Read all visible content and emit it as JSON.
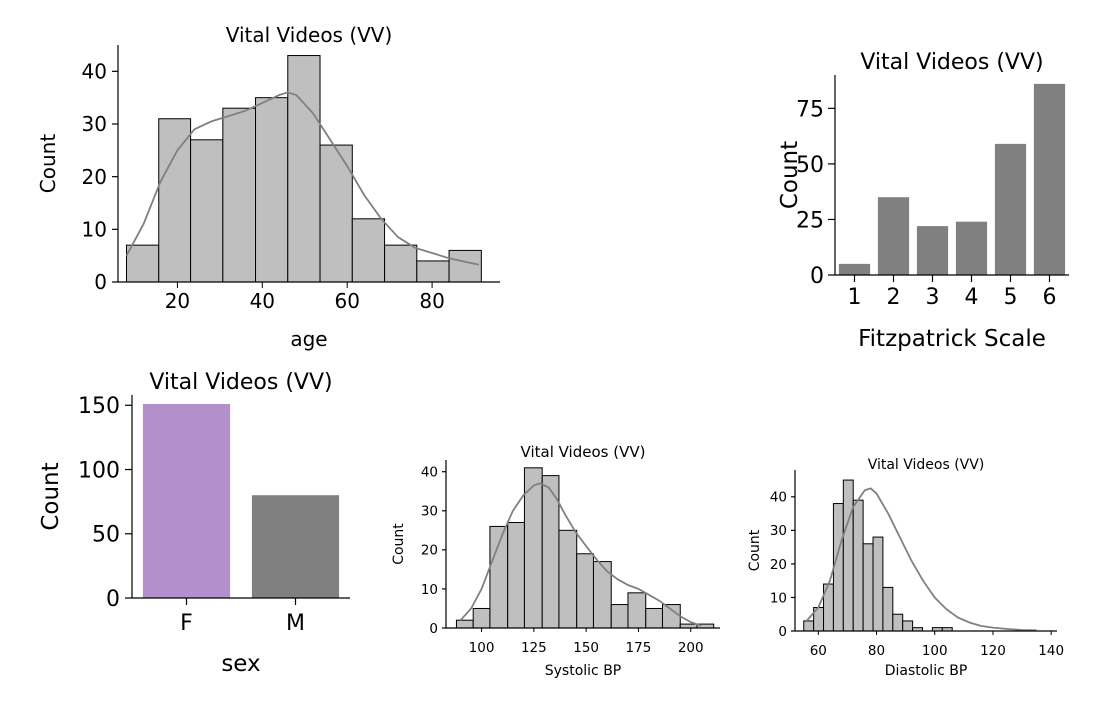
{
  "chart_data": [
    {
      "id": "age",
      "type": "histogram",
      "title": "Vital Videos (VV)",
      "xlabel": "age",
      "ylabel": "Count",
      "xlim": [
        6,
        96
      ],
      "ylim": [
        0,
        45
      ],
      "xticks": [
        20,
        40,
        60,
        80
      ],
      "yticks": [
        0,
        10,
        20,
        30,
        40
      ],
      "bins": [
        {
          "x0": 8,
          "x1": 15.6,
          "count": 7
        },
        {
          "x0": 15.6,
          "x1": 23.1,
          "count": 31
        },
        {
          "x0": 23.1,
          "x1": 30.7,
          "count": 27
        },
        {
          "x0": 30.7,
          "x1": 38.4,
          "count": 33
        },
        {
          "x0": 38.4,
          "x1": 46,
          "count": 35
        },
        {
          "x0": 46,
          "x1": 53.6,
          "count": 43
        },
        {
          "x0": 53.6,
          "x1": 61.2,
          "count": 26
        },
        {
          "x0": 61.2,
          "x1": 68.8,
          "count": 12
        },
        {
          "x0": 68.8,
          "x1": 76.4,
          "count": 7
        },
        {
          "x0": 76.4,
          "x1": 84,
          "count": 4
        },
        {
          "x0": 84,
          "x1": 91.6,
          "count": 6
        }
      ],
      "kde": {
        "x": [
          8,
          12,
          16,
          20,
          24,
          28,
          32,
          36,
          40,
          44,
          46,
          48,
          52,
          56,
          60,
          64,
          68,
          72,
          76,
          80,
          84,
          88,
          91
        ],
        "y": [
          5,
          11,
          19,
          25,
          29,
          30.5,
          31.5,
          32.5,
          34,
          35.5,
          36,
          35.5,
          32,
          27,
          22,
          16.5,
          12,
          8.5,
          6.5,
          5.5,
          4.5,
          3.8,
          3.3
        ]
      },
      "colors": {
        "bar": "#bfbfbf",
        "edge": "#000000",
        "kde": "#808080"
      }
    },
    {
      "id": "fitzpatrick",
      "type": "bar",
      "title": "Vital Videos (VV)",
      "xlabel": "Fitzpatrick Scale",
      "ylabel": "Count",
      "categories": [
        "1",
        "2",
        "3",
        "4",
        "5",
        "6"
      ],
      "values": [
        5,
        35,
        22,
        24,
        59,
        86
      ],
      "ylim": [
        0,
        90
      ],
      "yticks": [
        0,
        25,
        50,
        75
      ],
      "colors": {
        "bar": "#808080"
      }
    },
    {
      "id": "sex",
      "type": "bar",
      "title": "Vital Videos (VV)",
      "xlabel": "sex",
      "ylabel": "Count",
      "categories": [
        "F",
        "M"
      ],
      "values": [
        151,
        80
      ],
      "ylim": [
        0,
        158
      ],
      "yticks": [
        0,
        50,
        100,
        150
      ],
      "colors": {
        "bars": [
          "#b38fcc",
          "#808080"
        ]
      }
    },
    {
      "id": "systolic",
      "type": "histogram",
      "title": "Vital Videos (VV)",
      "xlabel": "Systolic BP",
      "ylabel": "Count",
      "xlim": [
        83,
        214
      ],
      "ylim": [
        0,
        43
      ],
      "xticks": [
        100,
        125,
        150,
        175,
        200
      ],
      "yticks": [
        0,
        10,
        20,
        30,
        40
      ],
      "bins": [
        {
          "x0": 88,
          "x1": 96,
          "count": 2
        },
        {
          "x0": 96,
          "x1": 104,
          "count": 5
        },
        {
          "x0": 104,
          "x1": 112.5,
          "count": 26
        },
        {
          "x0": 112.5,
          "x1": 120.5,
          "count": 27
        },
        {
          "x0": 120.5,
          "x1": 129,
          "count": 41
        },
        {
          "x0": 129,
          "x1": 137,
          "count": 39
        },
        {
          "x0": 137,
          "x1": 145.5,
          "count": 25
        },
        {
          "x0": 145.5,
          "x1": 153.5,
          "count": 19
        },
        {
          "x0": 153.5,
          "x1": 162,
          "count": 17
        },
        {
          "x0": 162,
          "x1": 170,
          "count": 6
        },
        {
          "x0": 170,
          "x1": 178.5,
          "count": 9
        },
        {
          "x0": 178.5,
          "x1": 186.5,
          "count": 5
        },
        {
          "x0": 186.5,
          "x1": 195,
          "count": 6
        },
        {
          "x0": 195,
          "x1": 203,
          "count": 1
        },
        {
          "x0": 203,
          "x1": 211,
          "count": 1
        }
      ],
      "kde": {
        "x": [
          90,
          95,
          100,
          105,
          110,
          115,
          120,
          125,
          128,
          132,
          136,
          140,
          145,
          150,
          155,
          160,
          165,
          170,
          175,
          180,
          185,
          190,
          195,
          200,
          205
        ],
        "y": [
          2,
          5,
          10,
          17,
          24,
          30,
          34,
          36.5,
          37,
          36,
          33,
          29,
          24.5,
          21,
          17.5,
          14.5,
          12.5,
          11,
          10,
          8.5,
          7,
          5,
          3,
          1.5,
          0.6
        ]
      },
      "colors": {
        "bar": "#bfbfbf",
        "edge": "#000000",
        "kde": "#808080"
      }
    },
    {
      "id": "diastolic",
      "type": "histogram",
      "title": "Vital Videos (VV)",
      "xlabel": "Diastolic BP",
      "ylabel": "Count",
      "xlim": [
        52,
        142
      ],
      "ylim": [
        0,
        48
      ],
      "xticks": [
        60,
        80,
        100,
        120,
        140
      ],
      "yticks": [
        0,
        10,
        20,
        30,
        40
      ],
      "bins": [
        {
          "x0": 55,
          "x1": 58.4,
          "count": 3
        },
        {
          "x0": 58.4,
          "x1": 61.8,
          "count": 7
        },
        {
          "x0": 61.8,
          "x1": 65.2,
          "count": 14
        },
        {
          "x0": 65.2,
          "x1": 68.6,
          "count": 38
        },
        {
          "x0": 68.6,
          "x1": 72,
          "count": 45
        },
        {
          "x0": 72,
          "x1": 75.4,
          "count": 39
        },
        {
          "x0": 75.4,
          "x1": 78.8,
          "count": 26
        },
        {
          "x0": 78.8,
          "x1": 82.2,
          "count": 28
        },
        {
          "x0": 82.2,
          "x1": 85.6,
          "count": 13
        },
        {
          "x0": 85.6,
          "x1": 89,
          "count": 5
        },
        {
          "x0": 89,
          "x1": 92.4,
          "count": 3
        },
        {
          "x0": 92.4,
          "x1": 95.8,
          "count": 1
        },
        {
          "x0": 95.8,
          "x1": 99.2,
          "count": 0
        },
        {
          "x0": 99.2,
          "x1": 102.6,
          "count": 1
        },
        {
          "x0": 102.6,
          "x1": 106,
          "count": 1
        }
      ],
      "kde": {
        "x": [
          56,
          60,
          64,
          68,
          72,
          76,
          78,
          80,
          84,
          88,
          92,
          96,
          100,
          104,
          108,
          112,
          116,
          120,
          125,
          130,
          135
        ],
        "y": [
          3,
          7,
          15,
          27,
          37,
          42,
          42.5,
          41,
          35,
          28,
          21,
          15,
          10,
          6.5,
          4,
          2.5,
          1.5,
          1,
          0.6,
          0.3,
          0.2
        ]
      },
      "colors": {
        "bar": "#bfbfbf",
        "edge": "#000000",
        "kde": "#808080"
      }
    }
  ]
}
